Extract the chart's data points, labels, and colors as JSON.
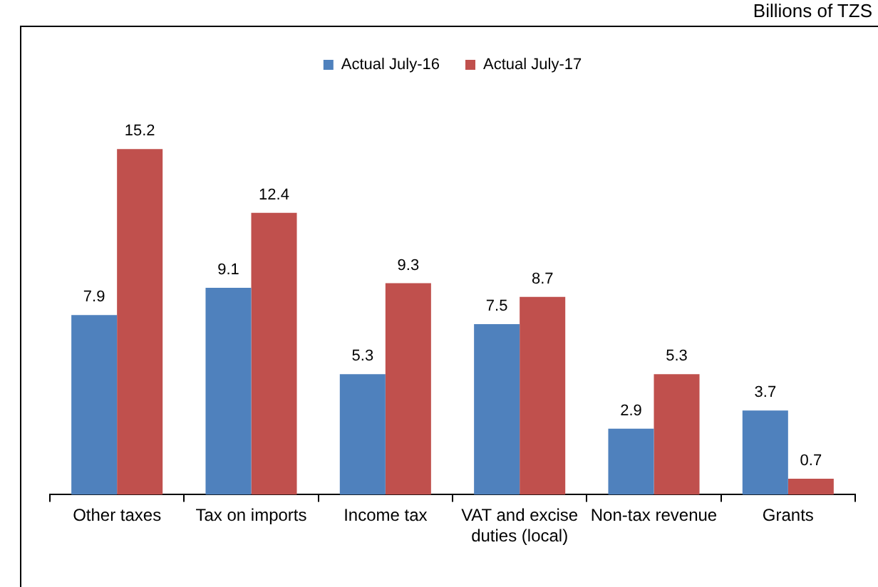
{
  "chart_data": {
    "type": "bar",
    "annotations": [
      "Billions of TZS"
    ],
    "categories": [
      "Other taxes",
      "Tax on imports",
      "Income tax",
      "VAT and excise duties (local)",
      "Non-tax revenue",
      "Grants"
    ],
    "series": [
      {
        "name": "Actual July-16",
        "color": "#4f81bd",
        "values": [
          7.9,
          9.1,
          5.3,
          7.5,
          2.9,
          3.7
        ]
      },
      {
        "name": "Actual July-17",
        "color": "#c0504d",
        "values": [
          15.2,
          12.4,
          9.3,
          8.7,
          5.3,
          0.7
        ]
      }
    ],
    "data_labels": true,
    "legend": "top",
    "grid": false
  }
}
